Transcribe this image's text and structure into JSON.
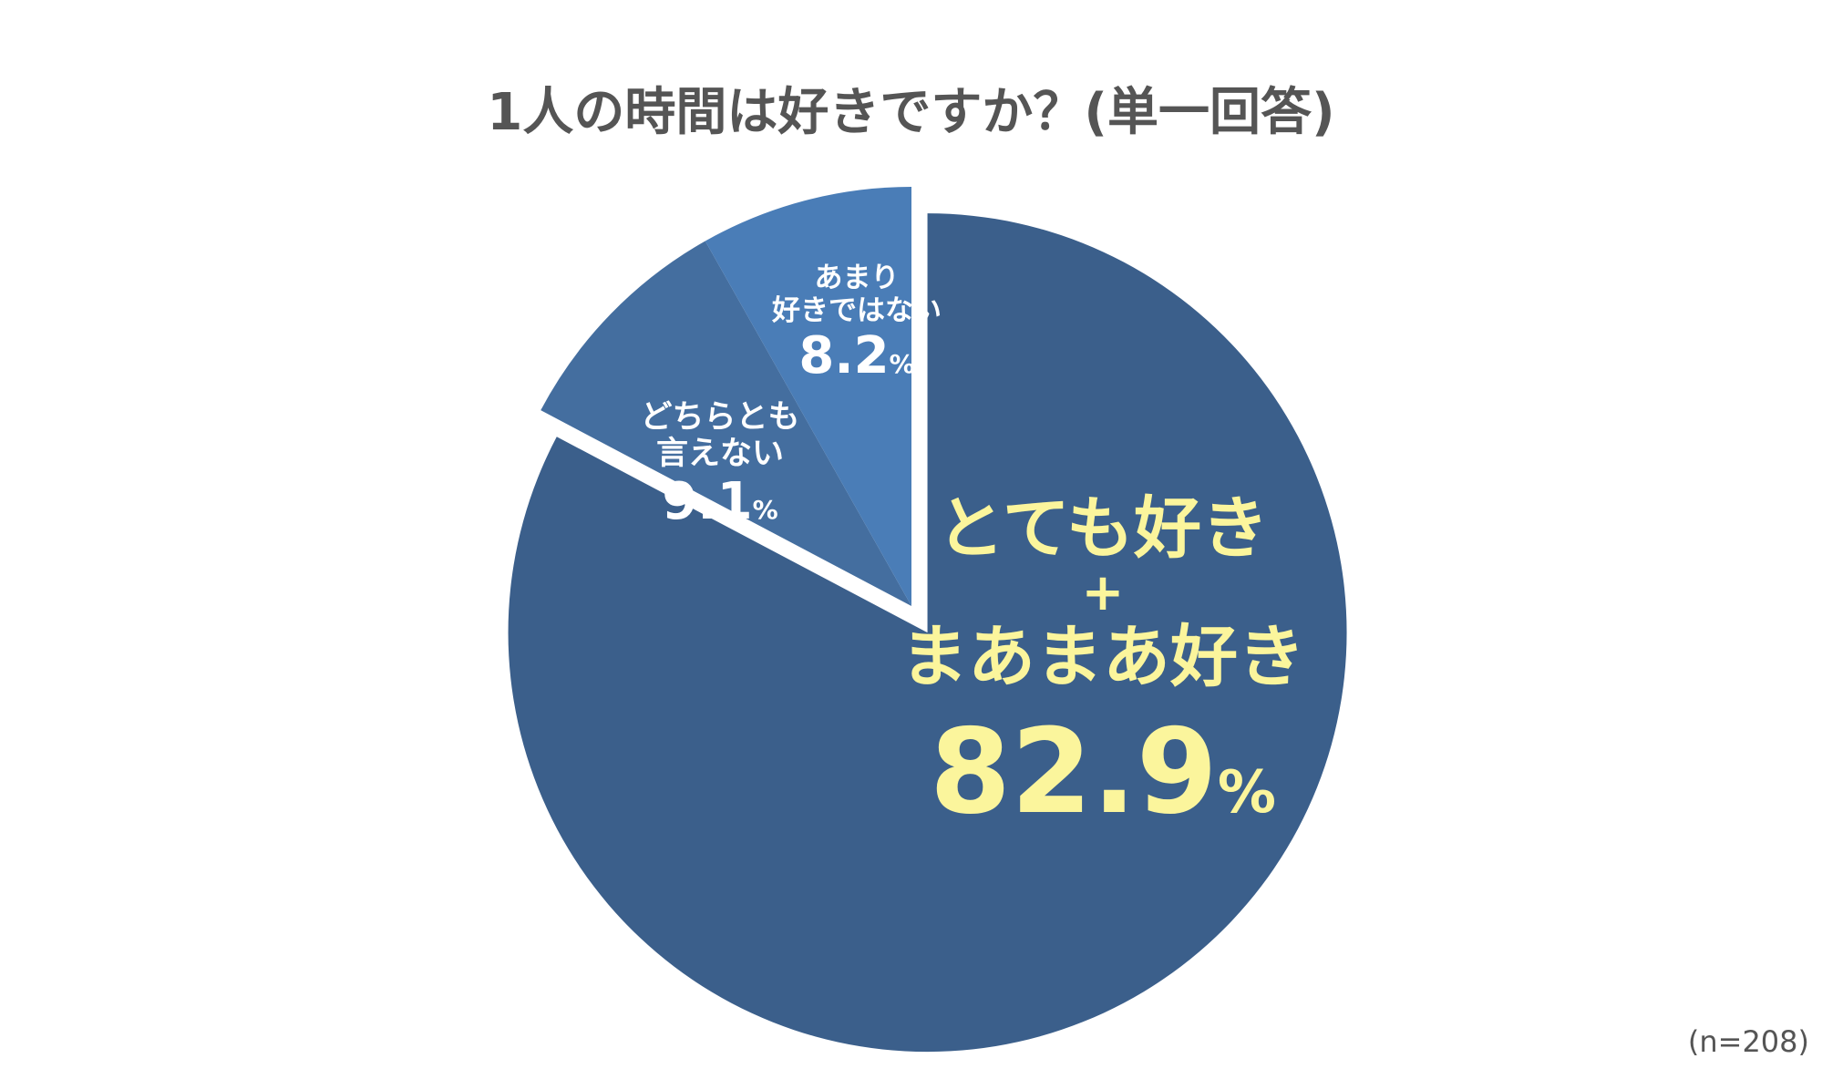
{
  "chart_data": {
    "type": "pie",
    "title": "1人の時間は好きですか？(単一回答)",
    "note": "(n=208)",
    "slices": [
      {
        "key": "main",
        "label_lines": [
          "とても好き",
          "+",
          "まあまあ好き"
        ],
        "value": 82.9,
        "value_text": "82.9",
        "unit": "%",
        "color": "#3b5f8b",
        "exploded": true
      },
      {
        "key": "neutral",
        "label_lines": [
          "どちらとも",
          "言えない"
        ],
        "value": 9.1,
        "value_text": "9.1",
        "unit": "%",
        "color": "#446e9f",
        "exploded": false
      },
      {
        "key": "dislike",
        "label_lines": [
          "あまり",
          "好きではない"
        ],
        "value": 8.2,
        "value_text": "8.2",
        "unit": "%",
        "color": "#4a7db7",
        "exploded": false
      }
    ],
    "start_angle_deg": 0,
    "direction": "clockwise",
    "legend": "none"
  },
  "colors": {
    "background": "#ffffff",
    "title": "#555555",
    "main_label": "#fbf59c",
    "small_label": "#ffffff"
  }
}
